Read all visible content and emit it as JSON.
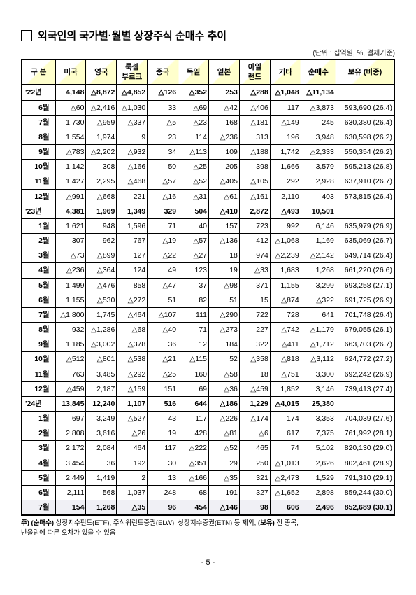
{
  "title": "외국인의 국가별·월별 상장주식 순매수 추이",
  "unit": "(단위 : 십억원, %, 결제기준)",
  "columns": [
    "구 분",
    "미국",
    "영국",
    "룩셈\n부르크",
    "중국",
    "독일",
    "일본",
    "아일\n랜드",
    "기타",
    "순매수",
    "보유 (비중)"
  ],
  "rows": [
    {
      "type": "year",
      "cells": [
        "'22년",
        "4,148",
        "△8,872",
        "△4,852",
        "△126",
        "△352",
        "253",
        "△288",
        "△1,048",
        "△11,134",
        ""
      ]
    },
    {
      "type": "month",
      "cells": [
        "6월",
        "△60",
        "△2,416",
        "△1,030",
        "33",
        "△69",
        "△42",
        "△406",
        "117",
        "△3,873",
        "593,690 (26.4)"
      ]
    },
    {
      "type": "month",
      "cells": [
        "7월",
        "1,730",
        "△959",
        "△337",
        "△5",
        "△23",
        "168",
        "△181",
        "△149",
        "245",
        "630,380 (26.4)"
      ]
    },
    {
      "type": "month",
      "cells": [
        "8월",
        "1,554",
        "1,974",
        "9",
        "23",
        "114",
        "△236",
        "313",
        "196",
        "3,948",
        "630,598 (26.2)"
      ]
    },
    {
      "type": "month",
      "cells": [
        "9월",
        "△783",
        "△2,202",
        "△932",
        "34",
        "△113",
        "109",
        "△188",
        "1,742",
        "△2,333",
        "550,354 (26.2)"
      ]
    },
    {
      "type": "month",
      "cells": [
        "10월",
        "1,142",
        "308",
        "△166",
        "50",
        "△25",
        "205",
        "398",
        "1,666",
        "3,579",
        "595,213 (26.8)"
      ]
    },
    {
      "type": "month",
      "cells": [
        "11월",
        "1,427",
        "2,295",
        "△468",
        "△57",
        "△52",
        "△405",
        "△105",
        "292",
        "2,928",
        "637,910 (26.7)"
      ]
    },
    {
      "type": "month",
      "cells": [
        "12월",
        "△991",
        "△668",
        "221",
        "△16",
        "△31",
        "△61",
        "△161",
        "2,110",
        "403",
        "573,815 (26.4)"
      ]
    },
    {
      "type": "year",
      "cells": [
        "'23년",
        "4,381",
        "1,969",
        "1,349",
        "329",
        "504",
        "△410",
        "2,872",
        "△493",
        "10,501",
        ""
      ]
    },
    {
      "type": "month",
      "cells": [
        "1월",
        "1,621",
        "948",
        "1,596",
        "71",
        "40",
        "157",
        "723",
        "992",
        "6,146",
        "635,979 (26.9)"
      ]
    },
    {
      "type": "month",
      "cells": [
        "2월",
        "307",
        "962",
        "767",
        "△19",
        "△57",
        "△136",
        "412",
        "△1,068",
        "1,169",
        "635,069 (26.7)"
      ]
    },
    {
      "type": "month",
      "cells": [
        "3월",
        "△73",
        "△899",
        "127",
        "△22",
        "△27",
        "18",
        "974",
        "△2,239",
        "△2,142",
        "649,714 (26.4)"
      ]
    },
    {
      "type": "month",
      "cells": [
        "4월",
        "△236",
        "△364",
        "124",
        "49",
        "123",
        "19",
        "△33",
        "1,683",
        "1,268",
        "661,220 (26.6)"
      ]
    },
    {
      "type": "month",
      "cells": [
        "5월",
        "1,499",
        "△476",
        "858",
        "△47",
        "37",
        "△98",
        "371",
        "1,155",
        "3,299",
        "693,258 (27.1)"
      ]
    },
    {
      "type": "month",
      "cells": [
        "6월",
        "1,155",
        "△530",
        "△272",
        "51",
        "82",
        "51",
        "15",
        "△874",
        "△322",
        "691,725 (26.9)"
      ]
    },
    {
      "type": "month",
      "cells": [
        "7월",
        "△1,800",
        "1,745",
        "△464",
        "△107",
        "111",
        "△290",
        "722",
        "728",
        "641",
        "701,748 (26.4)"
      ]
    },
    {
      "type": "month",
      "cells": [
        "8월",
        "932",
        "△1,286",
        "△68",
        "△40",
        "71",
        "△273",
        "227",
        "△742",
        "△1,179",
        "679,055 (26.1)"
      ]
    },
    {
      "type": "month",
      "cells": [
        "9월",
        "1,185",
        "△3,002",
        "△378",
        "36",
        "12",
        "184",
        "322",
        "△411",
        "△1,712",
        "663,703 (26.7)"
      ]
    },
    {
      "type": "month",
      "cells": [
        "10월",
        "△512",
        "△801",
        "△538",
        "△21",
        "△115",
        "52",
        "△358",
        "△818",
        "△3,112",
        "624,772 (27.2)"
      ]
    },
    {
      "type": "month",
      "cells": [
        "11월",
        "763",
        "3,485",
        "△292",
        "△25",
        "160",
        "△58",
        "18",
        "△751",
        "3,300",
        "692,242 (26.9)"
      ]
    },
    {
      "type": "month",
      "cells": [
        "12월",
        "△459",
        "2,187",
        "△159",
        "151",
        "69",
        "△36",
        "△459",
        "1,852",
        "3,146",
        "739,413 (27.4)"
      ]
    },
    {
      "type": "year",
      "cells": [
        "'24년",
        "13,845",
        "12,240",
        "1,107",
        "516",
        "644",
        "△186",
        "1,229",
        "△4,015",
        "25,380",
        ""
      ]
    },
    {
      "type": "month",
      "cells": [
        "1월",
        "697",
        "3,249",
        "△527",
        "43",
        "117",
        "△226",
        "△174",
        "174",
        "3,353",
        "704,039 (27.6)"
      ]
    },
    {
      "type": "month",
      "cells": [
        "2월",
        "2,808",
        "3,616",
        "△26",
        "19",
        "428",
        "△81",
        "△6",
        "617",
        "7,375",
        "761,992 (28.1)"
      ]
    },
    {
      "type": "month",
      "cells": [
        "3월",
        "2,172",
        "2,084",
        "464",
        "117",
        "△222",
        "△52",
        "465",
        "74",
        "5,102",
        "820,130 (29.0)"
      ]
    },
    {
      "type": "month",
      "cells": [
        "4월",
        "3,454",
        "36",
        "192",
        "30",
        "△351",
        "29",
        "250",
        "△1,013",
        "2,626",
        "802,461 (28.9)"
      ]
    },
    {
      "type": "month",
      "cells": [
        "5월",
        "2,449",
        "1,419",
        "2",
        "13",
        "△166",
        "△35",
        "321",
        "△2,473",
        "1,529",
        "791,310 (29.1)"
      ]
    },
    {
      "type": "month",
      "cells": [
        "6월",
        "2,111",
        "568",
        "1,037",
        "248",
        "68",
        "191",
        "327",
        "△1,652",
        "2,898",
        "859,244 (30.0)"
      ]
    },
    {
      "type": "highlight",
      "cells": [
        "7월",
        "154",
        "1,268",
        "△35",
        "96",
        "454",
        "△146",
        "98",
        "606",
        "2,496",
        "852,689 (30.1)"
      ]
    }
  ],
  "footnote_bold1": "주) (순매수)",
  "footnote_mid": " 상장지수펀드(ETF), 주식워런트증권(ELW), 상장지수증권(ETN) 등 제외, ",
  "footnote_bold2": "(보유)",
  "footnote_end": " 전 종목,\n      반올림에 따른 오차가 있을 수 있음",
  "page": "- 5 -"
}
